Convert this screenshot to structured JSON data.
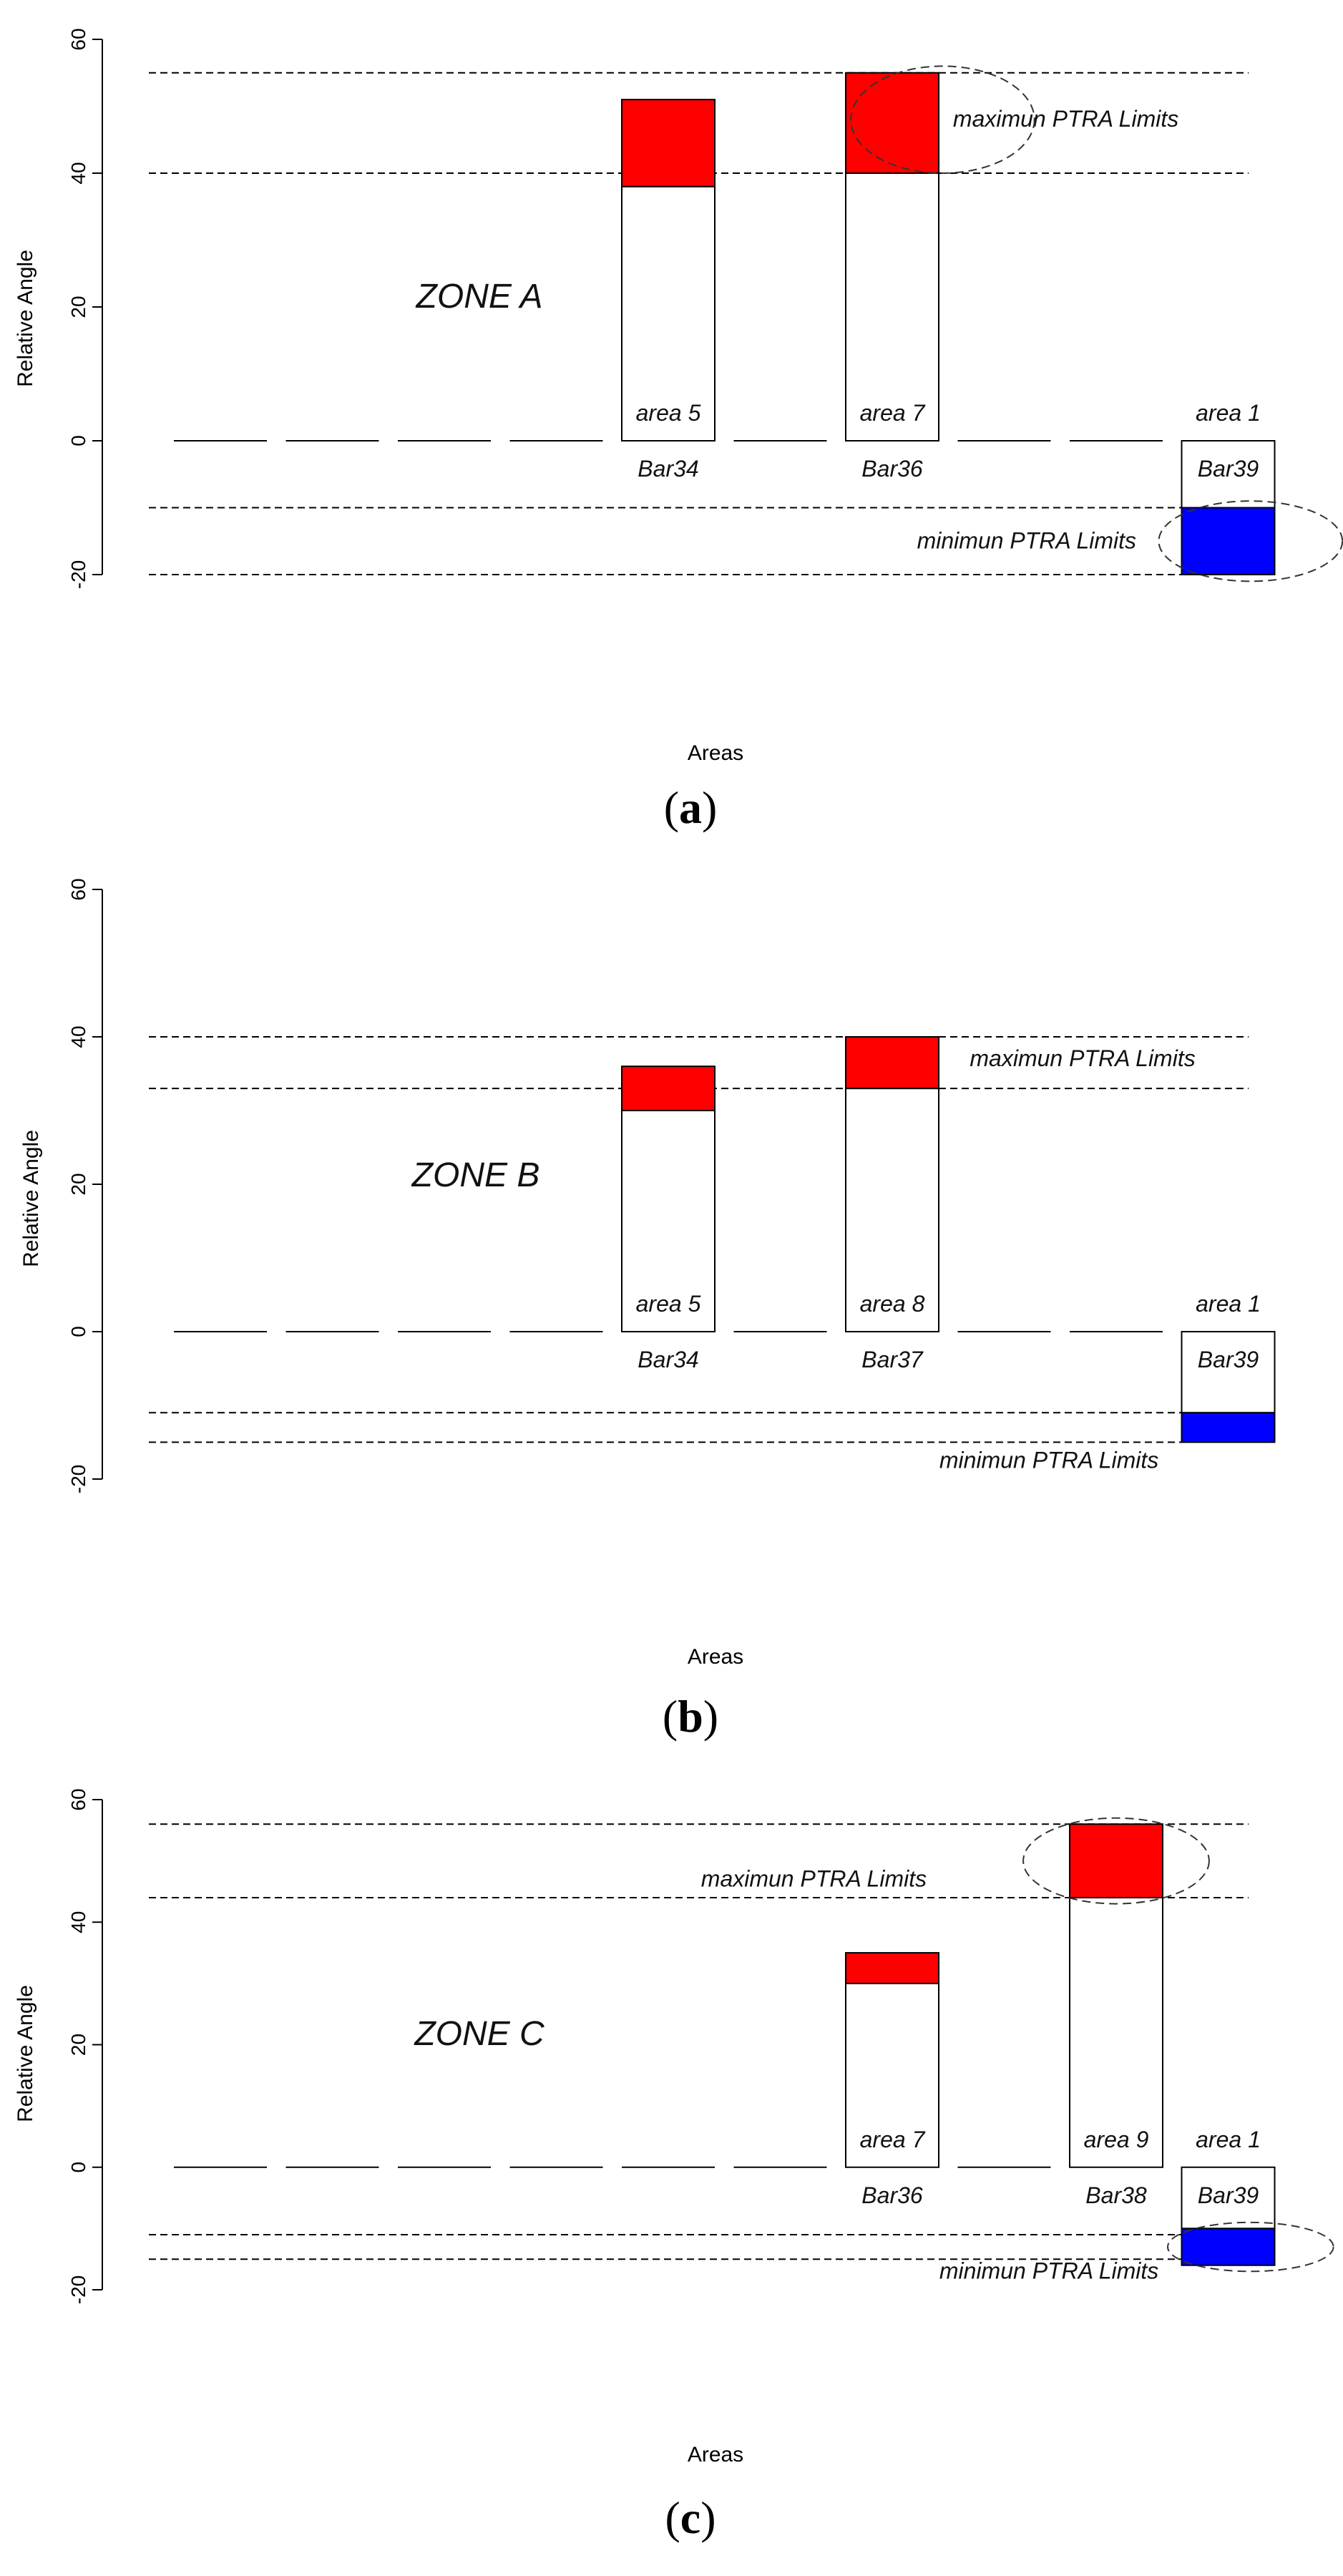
{
  "chart_data": [
    {
      "type": "bar",
      "panel_label": "a",
      "zone_label": "ZONE A",
      "ylabel": "Relative Angle",
      "xlabel": "Areas",
      "ylim": [
        -20,
        60
      ],
      "yticks": [
        -20,
        0,
        20,
        40,
        60
      ],
      "grid": false,
      "slots": 10,
      "bars": [
        {
          "slot": 5,
          "bar_label": "Bar34",
          "area_label": "area 5",
          "base": 0,
          "top": 38,
          "excess_from": 38,
          "excess_to": 51,
          "excess_color": "#ff0000"
        },
        {
          "slot": 7,
          "bar_label": "Bar36",
          "area_label": "area 7",
          "base": 0,
          "top": 40,
          "excess_from": 40,
          "excess_to": 55,
          "excess_color": "#ff0000"
        },
        {
          "slot": 10,
          "bar_label": "Bar39",
          "area_label": "area 1",
          "base": 0,
          "top": -10,
          "excess_from": -10,
          "excess_to": -20,
          "excess_color": "#0000ff"
        }
      ],
      "limit_lines": [
        55,
        40,
        -10,
        -20
      ],
      "annotations": [
        {
          "text": "maximun PTRA Limits",
          "slot_pos": 8.55,
          "y": 48
        },
        {
          "text": "minimun PTRA Limits",
          "slot_pos": 8.2,
          "y": -15
        }
      ],
      "ellipses": [
        {
          "slot_pos": 7.45,
          "y": 48,
          "rx_slots": 0.82,
          "ry": 8
        },
        {
          "slot_pos": 10.2,
          "y": -15,
          "rx_slots": 0.82,
          "ry": 6
        }
      ]
    },
    {
      "type": "bar",
      "panel_label": "b",
      "zone_label": "ZONE B",
      "ylabel": "Relative Angle",
      "xlabel": "Areas",
      "ylim": [
        -20,
        60
      ],
      "yticks": [
        -20,
        0,
        20,
        40,
        60
      ],
      "grid": false,
      "slots": 10,
      "bars": [
        {
          "slot": 5,
          "bar_label": "Bar34",
          "area_label": "area 5",
          "base": 0,
          "top": 30,
          "excess_from": 30,
          "excess_to": 36,
          "excess_color": "#ff0000"
        },
        {
          "slot": 7,
          "bar_label": "Bar37",
          "area_label": "area 8",
          "base": 0,
          "top": 33,
          "excess_from": 33,
          "excess_to": 40,
          "excess_color": "#ff0000"
        },
        {
          "slot": 10,
          "bar_label": "Bar39",
          "area_label": "area 1",
          "base": 0,
          "top": -11,
          "excess_from": -11,
          "excess_to": -15,
          "excess_color": "#0000ff"
        }
      ],
      "limit_lines": [
        40,
        33,
        -11,
        -15
      ],
      "annotations": [
        {
          "text": "maximun PTRA Limits",
          "slot_pos": 8.7,
          "y": 37
        },
        {
          "text": "minimun PTRA Limits",
          "slot_pos": 8.4,
          "y": -17.5
        }
      ],
      "ellipses": []
    },
    {
      "type": "bar",
      "panel_label": "c",
      "zone_label": "ZONE C",
      "ylabel": "Relative Angle",
      "xlabel": "Areas",
      "ylim": [
        -20,
        60
      ],
      "yticks": [
        -20,
        0,
        20,
        40,
        60
      ],
      "grid": false,
      "slots": 10,
      "bars": [
        {
          "slot": 7,
          "bar_label": "Bar36",
          "area_label": "area 7",
          "base": 0,
          "top": 30,
          "excess_from": 30,
          "excess_to": 35,
          "excess_color": "#ff0000"
        },
        {
          "slot": 9,
          "bar_label": "Bar38",
          "area_label": "area 9",
          "base": 0,
          "top": 44,
          "excess_from": 44,
          "excess_to": 56,
          "excess_color": "#ff0000"
        },
        {
          "slot": 10,
          "bar_label": "Bar39",
          "area_label": "area 1",
          "base": 0,
          "top": -10,
          "excess_from": -10,
          "excess_to": -16,
          "excess_color": "#0000ff"
        }
      ],
      "limit_lines": [
        56,
        44,
        -11,
        -15
      ],
      "annotations": [
        {
          "text": "maximun PTRA Limits",
          "slot_pos": 6.3,
          "y": 47
        },
        {
          "text": "minimun PTRA Limits",
          "slot_pos": 8.4,
          "y": -17
        }
      ],
      "ellipses": [
        {
          "slot_pos": 9.0,
          "y": 50,
          "rx_slots": 0.83,
          "ry": 7
        },
        {
          "slot_pos": 10.2,
          "y": -13,
          "rx_slots": 0.74,
          "ry": 4
        }
      ]
    }
  ]
}
